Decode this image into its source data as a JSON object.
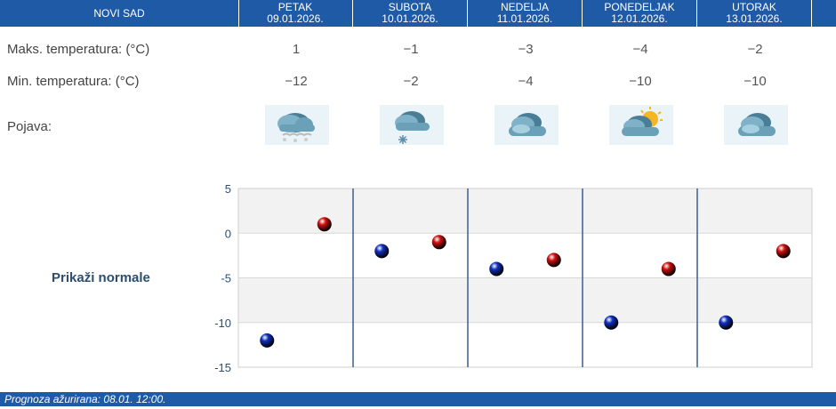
{
  "header": {
    "city": "NOVI SAD",
    "days": [
      {
        "name": "PETAK",
        "date": "09.01.2026."
      },
      {
        "name": "SUBOTA",
        "date": "10.01.2026."
      },
      {
        "name": "NEDELJA",
        "date": "11.01.2026."
      },
      {
        "name": "PONEDELJAK",
        "date": "12.01.2026."
      },
      {
        "name": "UTORAK",
        "date": "13.01.2026."
      }
    ]
  },
  "rows": {
    "max_label": "Maks. temperatura: (°C)",
    "min_label": "Min. temperatura: (°C)",
    "phenomenon_label": "Pojava:",
    "max_values": [
      "1",
      "−1",
      "−3",
      "−4",
      "−2"
    ],
    "min_values": [
      "−12",
      "−2",
      "−4",
      "−10",
      "−10"
    ],
    "icons": [
      "cloud-snow-icon",
      "cloud-snowflake-icon",
      "cloud-icon",
      "sun-cloud-icon",
      "cloud-icon"
    ]
  },
  "chart_label": "Prikaži normale",
  "chart_data": {
    "type": "scatter",
    "categories": [
      "09.01.2026.",
      "10.01.2026.",
      "11.01.2026.",
      "12.01.2026.",
      "13.01.2026."
    ],
    "series": [
      {
        "name": "",
        "color": "#1030c0",
        "values": [
          -12,
          -2,
          -4,
          -10,
          -10
        ]
      },
      {
        "name": "",
        "color": "#d01010",
        "values": [
          1,
          -1,
          -3,
          -4,
          -2
        ]
      }
    ],
    "ylim": [
      -15,
      5
    ],
    "yticks": [
      "5",
      "0",
      "-5",
      "-10",
      "-15"
    ],
    "grid": true
  },
  "footer": {
    "text": "Prognoza ažurirana:  08.01. 12:00."
  }
}
